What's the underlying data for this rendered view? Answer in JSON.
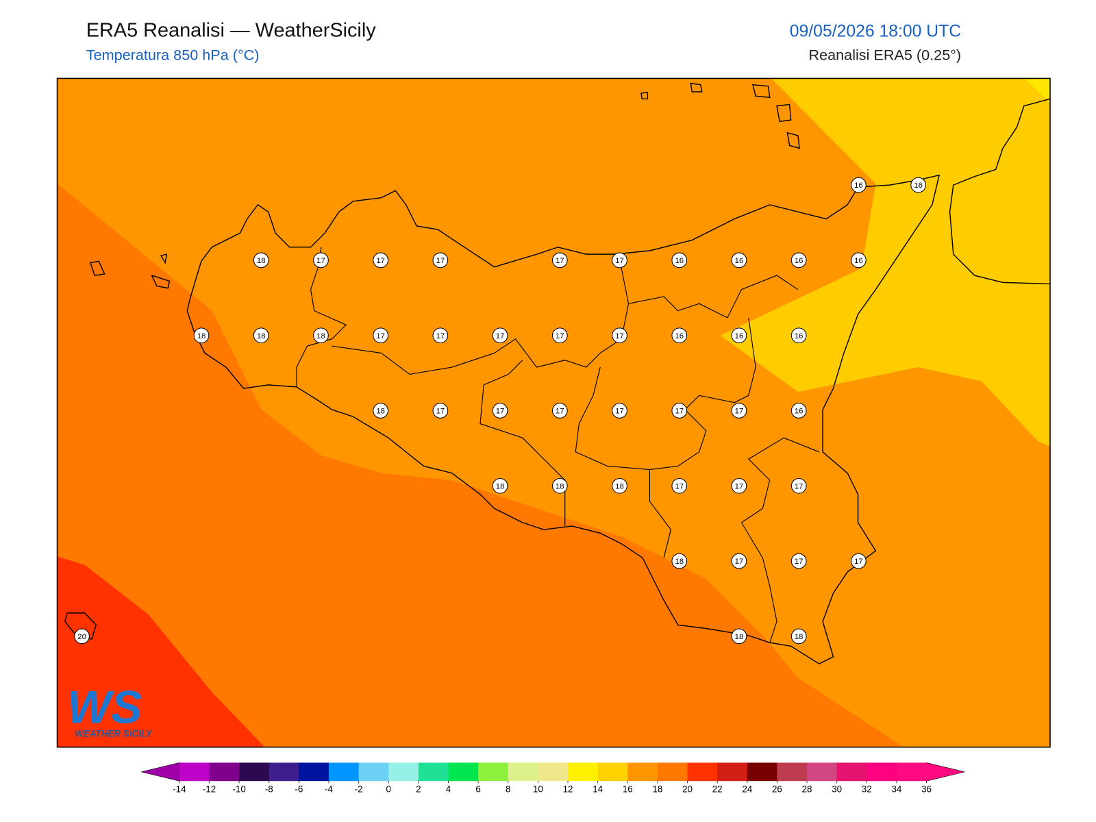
{
  "header": {
    "title": "ERA5 Reanalisi — WeatherSicily",
    "subtitle": "Temperatura 850 hPa (°C)",
    "datetime": "09/05/2026 18:00 UTC",
    "source": "Reanalisi ERA5 (0.25°)"
  },
  "labels": {
    "rows": [
      [
        null,
        null,
        null,
        null,
        null,
        null,
        null,
        null,
        null,
        null,
        null,
        null,
        null,
        16,
        16
      ],
      [
        null,
        null,
        null,
        18,
        17,
        17,
        17,
        null,
        17,
        17,
        16,
        16,
        16,
        16,
        null
      ],
      [
        null,
        null,
        18,
        18,
        18,
        17,
        17,
        17,
        17,
        17,
        16,
        16,
        16,
        null,
        null
      ],
      [
        null,
        null,
        null,
        null,
        null,
        18,
        17,
        17,
        17,
        17,
        17,
        17,
        16,
        null,
        null
      ],
      [
        null,
        null,
        null,
        null,
        null,
        null,
        null,
        18,
        18,
        18,
        17,
        17,
        17,
        null,
        null
      ],
      [
        null,
        null,
        null,
        null,
        null,
        null,
        null,
        null,
        null,
        null,
        18,
        17,
        17,
        17,
        null
      ],
      [
        20,
        null,
        null,
        null,
        null,
        null,
        null,
        null,
        null,
        null,
        null,
        18,
        18,
        null,
        null
      ]
    ]
  },
  "colorbar": {
    "ticks": [
      -14,
      -12,
      -10,
      -8,
      -6,
      -4,
      -2,
      0,
      2,
      4,
      6,
      8,
      10,
      12,
      14,
      16,
      18,
      20,
      22,
      24,
      26,
      28,
      30,
      32,
      34,
      36
    ],
    "colors": [
      "#bf00c8",
      "#80008c",
      "#2d0a50",
      "#3c1e8c",
      "#0014a0",
      "#0096ff",
      "#6ccff6",
      "#96f0e6",
      "#1ee196",
      "#00e650",
      "#8cf03c",
      "#dcf08c",
      "#f0e68c",
      "#fff000",
      "#ffd200",
      "#ff9600",
      "#ff7800",
      "#ff3200",
      "#d21e14",
      "#780000",
      "#be3c50",
      "#d24682",
      "#e6146e",
      "#ff0080",
      "#ff0a80"
    ],
    "under_color": "#a000a8",
    "over_color": "#ff0a80"
  },
  "logo": {
    "mark": "WS",
    "caption": "WEATHER SICILY"
  }
}
